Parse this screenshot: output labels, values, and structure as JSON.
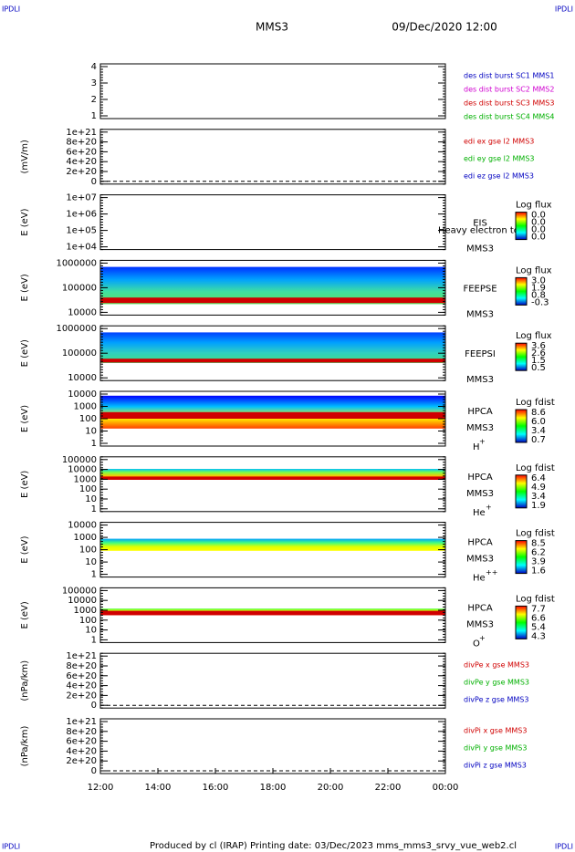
{
  "corner_marks": [
    "IPDLI",
    "IPDLI",
    "IPDLI",
    "IPDLI"
  ],
  "header": {
    "spacecraft": "MMS3",
    "date": "09/Dec/2020 12:00"
  },
  "panels": [
    {
      "yticks": [
        "4",
        "3",
        "2",
        "1"
      ],
      "legend": [
        {
          "text": "des dist burst SC1 MMS1",
          "color": "#0000c0"
        },
        {
          "text": "des dist burst SC2 MMS2",
          "color": "#d000d0"
        },
        {
          "text": "des dist burst SC3 MMS3",
          "color": "#d00000"
        },
        {
          "text": "des dist burst SC4 MMS4",
          "color": "#00b000"
        }
      ]
    },
    {
      "ylabel": "(mV/m)",
      "yticks": [
        "1e+21",
        "8e+20",
        "6e+20",
        "4e+20",
        "2e+20",
        "0"
      ],
      "legend": [
        {
          "text": "edi ex gse l2 MMS3",
          "color": "#d00000"
        },
        {
          "text": "edi ey gse l2 MMS3",
          "color": "#00b000"
        },
        {
          "text": "edi ez gse l2 MMS3",
          "color": "#0000c0"
        }
      ]
    },
    {
      "ylabel": "E (eV)",
      "yticks": [
        "1e+07",
        "1e+06",
        "1e+05",
        "1e+04"
      ],
      "instrument": "EIS",
      "spacecraft": "MMS3",
      "overlay_text": "Heavy electron to",
      "colorbar_title": "Log flux",
      "colorbar_ticks": [
        "0.0",
        "0.0",
        "0.0",
        "0.0"
      ]
    },
    {
      "ylabel": "E (eV)",
      "yticks": [
        "1000000",
        "100000",
        "10000"
      ],
      "instrument": "FEEPSE",
      "spacecraft": "MMS3",
      "colorbar_title": "Log flux",
      "colorbar_ticks": [
        "3.0",
        "1.9",
        "0.8",
        "-0.3"
      ]
    },
    {
      "ylabel": "E (eV)",
      "yticks": [
        "1000000",
        "100000",
        "10000"
      ],
      "instrument": "FEEPSI",
      "spacecraft": "MMS3",
      "colorbar_title": "Log flux",
      "colorbar_ticks": [
        "3.6",
        "2.6",
        "1.5",
        "0.5"
      ]
    },
    {
      "ylabel": "E (eV)",
      "yticks": [
        "10000",
        "1000",
        "100",
        "10",
        "1"
      ],
      "instrument": "HPCA",
      "spacecraft": "MMS3",
      "species": "H",
      "charge": "+",
      "colorbar_title": "Log fdist",
      "colorbar_ticks": [
        "8.6",
        "6.0",
        "3.4",
        "0.7"
      ]
    },
    {
      "ylabel": "E (eV)",
      "yticks": [
        "100000",
        "10000",
        "1000",
        "100",
        "10",
        "1"
      ],
      "instrument": "HPCA",
      "spacecraft": "MMS3",
      "species": "He",
      "charge": "+",
      "colorbar_title": "Log fdist",
      "colorbar_ticks": [
        "6.4",
        "4.9",
        "3.4",
        "1.9"
      ]
    },
    {
      "ylabel": "E (eV)",
      "yticks": [
        "10000",
        "1000",
        "100",
        "10",
        "1"
      ],
      "instrument": "HPCA",
      "spacecraft": "MMS3",
      "species": "He",
      "charge": "++",
      "colorbar_title": "Log fdist",
      "colorbar_ticks": [
        "8.5",
        "6.2",
        "3.9",
        "1.6"
      ]
    },
    {
      "ylabel": "E (eV)",
      "yticks": [
        "100000",
        "10000",
        "1000",
        "100",
        "10",
        "1"
      ],
      "instrument": "HPCA",
      "spacecraft": "MMS3",
      "species": "O",
      "charge": "+",
      "colorbar_title": "Log fdist",
      "colorbar_ticks": [
        "7.7",
        "6.6",
        "5.4",
        "4.3"
      ]
    },
    {
      "ylabel": "(nPa/km)",
      "yticks": [
        "1e+21",
        "8e+20",
        "6e+20",
        "4e+20",
        "2e+20",
        "0"
      ],
      "legend": [
        {
          "text": "divPe x gse MMS3",
          "color": "#d00000"
        },
        {
          "text": "divPe y gse MMS3",
          "color": "#00b000"
        },
        {
          "text": "divPe z gse MMS3",
          "color": "#0000c0"
        }
      ]
    },
    {
      "ylabel": "(nPa/km)",
      "yticks": [
        "1e+21",
        "8e+20",
        "6e+20",
        "4e+20",
        "2e+20",
        "0"
      ],
      "legend": [
        {
          "text": "divPi x gse MMS3",
          "color": "#d00000"
        },
        {
          "text": "divPi y gse MMS3",
          "color": "#00b000"
        },
        {
          "text": "divPi z gse MMS3",
          "color": "#0000c0"
        }
      ]
    }
  ],
  "xaxis": {
    "ticks": [
      "12:00",
      "14:00",
      "16:00",
      "18:00",
      "20:00",
      "22:00",
      "00:00"
    ]
  },
  "footer": "Produced by cl (IRAP)   Printing date: 03/Dec/2023   mms_mms3_srvy_vue_web2.cl"
}
